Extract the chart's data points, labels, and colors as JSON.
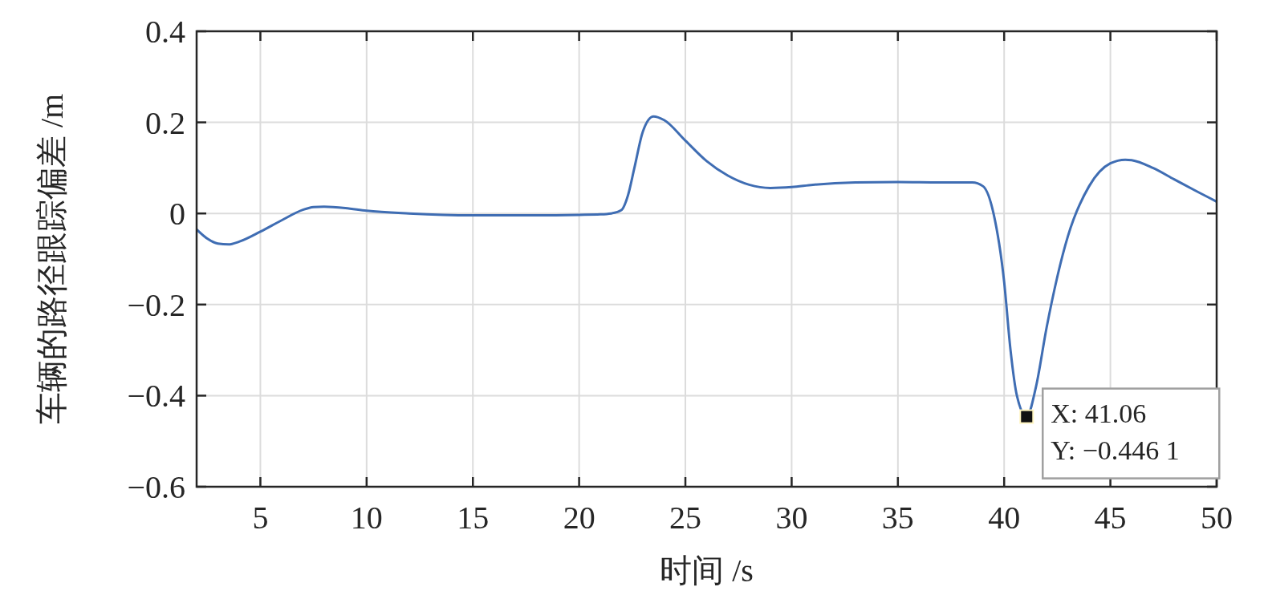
{
  "chart_data": {
    "type": "line",
    "xlabel": "时间 /s",
    "ylabel": "车辆的路径跟踪偏差 /m",
    "xlim": [
      2,
      50
    ],
    "ylim": [
      -0.6,
      0.4
    ],
    "xticks": [
      5,
      10,
      15,
      20,
      25,
      30,
      35,
      40,
      45,
      50
    ],
    "yticks": [
      {
        "value": -0.6,
        "label": "−0.6"
      },
      {
        "value": -0.4,
        "label": "−0.4"
      },
      {
        "value": -0.2,
        "label": "−0.2"
      },
      0,
      0.2,
      0.4
    ],
    "grid": true,
    "annotations": [
      {
        "text": "X: 41.06\nY: −0.446 1",
        "x": 41.06,
        "y": -0.4461
      }
    ],
    "series": [
      {
        "color": "#3f6db3",
        "x": [
          2,
          2.5,
          3,
          3.5,
          4,
          5,
          6,
          7,
          7.5,
          8,
          9,
          10,
          12,
          15,
          18,
          20,
          21,
          21.5,
          22,
          22.3,
          22.6,
          23,
          23.5,
          24,
          25,
          26,
          27,
          28,
          29,
          30,
          31,
          33,
          35,
          37,
          38.5,
          39,
          39.5,
          40,
          40.3,
          40.6,
          41.06,
          41.5,
          42,
          43,
          44,
          45,
          45.7,
          46,
          47,
          48,
          49,
          50
        ],
        "values": [
          -0.035,
          -0.055,
          -0.066,
          -0.068,
          -0.062,
          -0.04,
          -0.015,
          0.008,
          0.014,
          0.015,
          0.012,
          0.006,
          0,
          -0.004,
          -0.004,
          -0.003,
          -0.002,
          0,
          0.008,
          0.04,
          0.1,
          0.18,
          0.213,
          0.205,
          0.16,
          0.115,
          0.083,
          0.063,
          0.056,
          0.058,
          0.063,
          0.068,
          0.069,
          0.068,
          0.068,
          0.06,
          0,
          -0.15,
          -0.3,
          -0.4,
          -0.4461,
          -0.38,
          -0.25,
          -0.05,
          0.06,
          0.11,
          0.118,
          0.117,
          0.1,
          0.075,
          0.05,
          0.026
        ]
      }
    ]
  }
}
